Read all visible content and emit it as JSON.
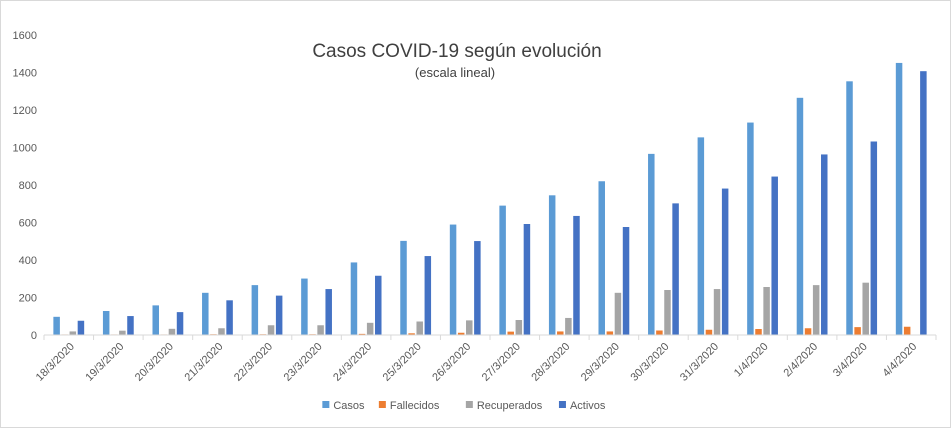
{
  "chart_data": {
    "type": "bar",
    "title": "Casos COVID-19 según evolución",
    "subtitle": "(escala lineal)",
    "xlabel": "",
    "ylabel": "",
    "ylim": [
      0,
      1600
    ],
    "yticks": [
      0,
      200,
      400,
      600,
      800,
      1000,
      1200,
      1400,
      1600
    ],
    "grid": false,
    "legend_position": "bottom",
    "categories": [
      "18/3/2020",
      "19/3/2020",
      "20/3/2020",
      "21/3/2020",
      "22/3/2020",
      "23/3/2020",
      "24/3/2020",
      "25/3/2020",
      "26/3/2020",
      "27/3/2020",
      "28/3/2020",
      "29/3/2020",
      "30/3/2020",
      "31/3/2020",
      "1/4/2020",
      "2/4/2020",
      "3/4/2020",
      "4/4/2020"
    ],
    "series": [
      {
        "name": "Casos",
        "color": "#5b9bd5",
        "values": [
          97,
          128,
          158,
          225,
          266,
          301,
          387,
          502,
          589,
          690,
          745,
          820,
          966,
          1054,
          1133,
          1265,
          1353,
          1451
        ]
      },
      {
        "name": "Fallecidos",
        "color": "#ed7d31",
        "values": [
          3,
          3,
          3,
          4,
          4,
          4,
          6,
          9,
          12,
          18,
          19,
          19,
          24,
          28,
          32,
          36,
          42,
          44
        ]
      },
      {
        "name": "Recuperados",
        "color": "#a5a5a5",
        "values": [
          19,
          23,
          33,
          36,
          52,
          52,
          65,
          72,
          78,
          80,
          91,
          225,
          240,
          245,
          256,
          266,
          279,
          0
        ]
      },
      {
        "name": "Activos",
        "color": "#4472c4",
        "values": [
          76,
          101,
          122,
          185,
          210,
          245,
          316,
          421,
          501,
          592,
          635,
          576,
          702,
          781,
          845,
          963,
          1032,
          1407
        ]
      }
    ]
  }
}
